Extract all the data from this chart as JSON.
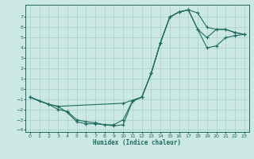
{
  "xlabel": "Humidex (Indice chaleur)",
  "xlim": [
    -0.5,
    23.5
  ],
  "ylim": [
    -4.2,
    8.2
  ],
  "yticks": [
    -4,
    -3,
    -2,
    -1,
    0,
    1,
    2,
    3,
    4,
    5,
    6,
    7
  ],
  "xticks": [
    0,
    1,
    2,
    3,
    4,
    5,
    6,
    7,
    8,
    9,
    10,
    11,
    12,
    13,
    14,
    15,
    16,
    17,
    18,
    19,
    20,
    21,
    22,
    23
  ],
  "bg_color": "#cce8e4",
  "line_color": "#1e6b5e",
  "grid_color": "#aacfcb",
  "line1_x": [
    0,
    2,
    3,
    10,
    12,
    13,
    14,
    15,
    16,
    17,
    18,
    19,
    20,
    21,
    22,
    23
  ],
  "line1_y": [
    -0.8,
    -1.5,
    -1.7,
    -1.4,
    -0.8,
    1.5,
    4.5,
    7.0,
    7.5,
    7.7,
    7.4,
    6.0,
    5.8,
    5.8,
    5.5,
    5.3
  ],
  "line2_x": [
    0,
    1,
    2,
    3,
    4,
    5,
    6,
    7,
    8,
    9,
    10,
    11,
    12,
    13,
    14,
    15,
    16,
    17,
    18,
    19,
    20,
    21,
    22,
    23
  ],
  "line2_y": [
    -0.8,
    -1.2,
    -1.5,
    -2.0,
    -2.2,
    -3.0,
    -3.2,
    -3.3,
    -3.5,
    -3.5,
    -3.0,
    -1.2,
    -0.8,
    1.5,
    4.5,
    7.0,
    7.5,
    7.7,
    5.8,
    5.0,
    5.8,
    5.8,
    5.5,
    5.3
  ],
  "line3_x": [
    0,
    2,
    3,
    4,
    5,
    6,
    7,
    8,
    9,
    10,
    11,
    12,
    13,
    14,
    15,
    16,
    17,
    18,
    19,
    20,
    21,
    22,
    23
  ],
  "line3_y": [
    -0.8,
    -1.5,
    -1.7,
    -2.3,
    -3.2,
    -3.4,
    -3.4,
    -3.5,
    -3.6,
    -3.5,
    -1.2,
    -0.8,
    1.5,
    4.5,
    7.0,
    7.5,
    7.7,
    5.8,
    4.0,
    4.2,
    5.0,
    5.2,
    5.3
  ]
}
